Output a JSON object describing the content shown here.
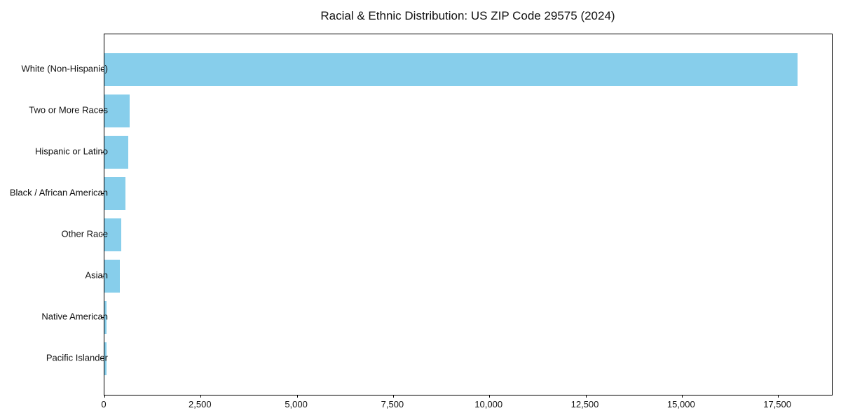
{
  "title": "Racial & Ethnic Distribution: US ZIP Code 29575 (2024)",
  "chart_data": {
    "type": "bar",
    "orientation": "horizontal",
    "title": "Racial & Ethnic Distribution: US ZIP Code 29575 (2024)",
    "xlabel": "",
    "ylabel": "",
    "categories": [
      "White (Non-Hispanic)",
      "Two or More Races",
      "Hispanic or Latino",
      "Black / African American",
      "Other Race",
      "Asian",
      "Native American",
      "Pacific Islander"
    ],
    "values": [
      18000,
      650,
      620,
      550,
      430,
      400,
      60,
      50
    ],
    "xlim": [
      0,
      18900
    ],
    "x_ticks": [
      0,
      2500,
      5000,
      7500,
      10000,
      12500,
      15000,
      17500
    ],
    "x_tick_labels": [
      "0",
      "2,500",
      "5,000",
      "7,500",
      "10,000",
      "12,500",
      "15,000",
      "17,500"
    ],
    "bar_color": "#87CEEB",
    "grid": false,
    "legend": null
  }
}
